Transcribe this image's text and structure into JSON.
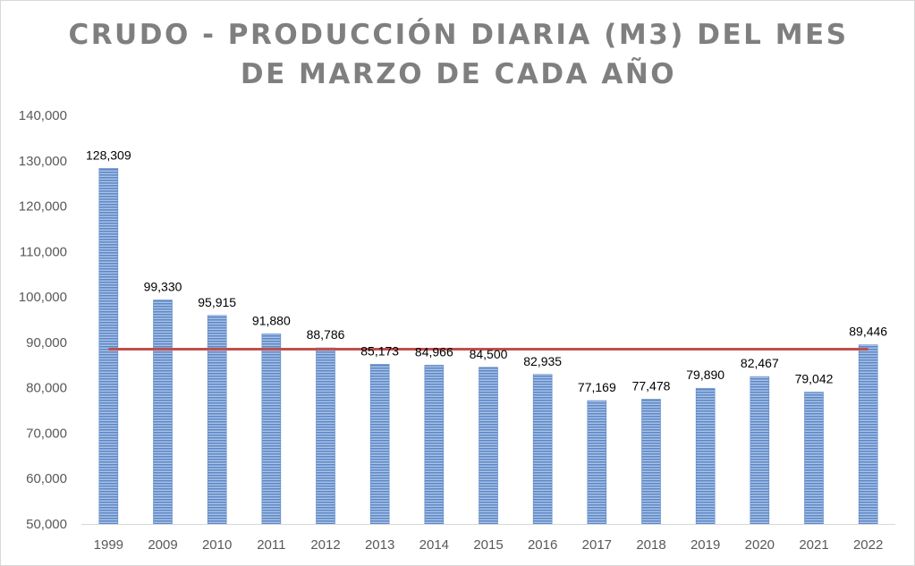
{
  "chart_data": {
    "type": "bar",
    "title_lines": [
      "CRUDO - PRODUCCIÓN DIARIA (M3) DEL MES",
      "DE MARZO DE CADA AÑO"
    ],
    "categories": [
      "1999",
      "2009",
      "2010",
      "2011",
      "2012",
      "2013",
      "2014",
      "2015",
      "2016",
      "2017",
      "2018",
      "2019",
      "2020",
      "2021",
      "2022"
    ],
    "values": [
      128309,
      99330,
      95915,
      91880,
      88786,
      85173,
      84966,
      84500,
      82935,
      77169,
      77478,
      79890,
      82467,
      79042,
      89446
    ],
    "value_labels": [
      "128,309",
      "99,330",
      "95,915",
      "91,880",
      "88,786",
      "85,173",
      "84,966",
      "84,500",
      "82,935",
      "77,169",
      "77,478",
      "79,890",
      "82,467",
      "79,042",
      "89,446"
    ],
    "ylim": [
      50000,
      140000
    ],
    "yticks": [
      50000,
      60000,
      70000,
      80000,
      90000,
      100000,
      110000,
      120000,
      130000,
      140000
    ],
    "ytick_labels": [
      "50,000",
      "60,000",
      "70,000",
      "80,000",
      "90,000",
      "100,000",
      "110,000",
      "120,000",
      "130,000",
      "140,000"
    ],
    "reference_line": {
      "value": 88500,
      "color": "#c0504d"
    },
    "bar_color": "#5b87c5",
    "grid": false,
    "legend": "none"
  }
}
